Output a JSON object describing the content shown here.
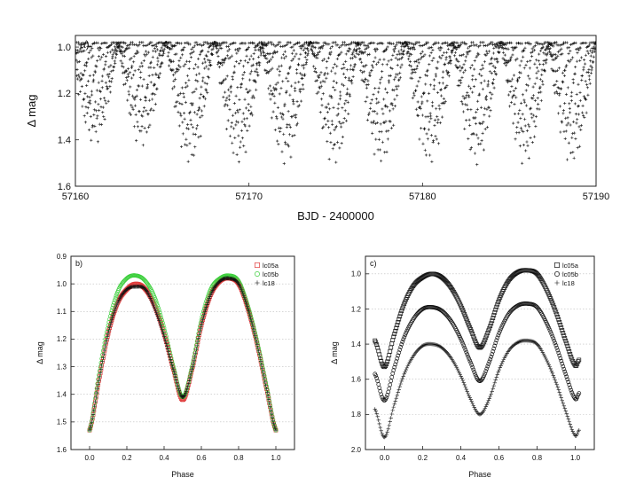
{
  "colors": {
    "axis": "#222222",
    "grid": "#bdbdbd",
    "marker_black": "#111111",
    "marker_red": "#e03c3c",
    "marker_green": "#3ccf3c"
  },
  "chart_data": [
    {
      "id": "a",
      "type": "scatter",
      "panel_label": "a)",
      "xlabel": "BJD - 2400000",
      "ylabel": "Δ mag",
      "xlim": [
        57160,
        57190
      ],
      "ylim": [
        1.6,
        0.95
      ],
      "y_inverted": true,
      "grid": false,
      "xticks": [
        57160,
        57170,
        57180,
        57190
      ],
      "xtick_labels": [
        "57160",
        "57170",
        "57180",
        "57190"
      ],
      "yticks": [
        1.0,
        1.2,
        1.4,
        1.6
      ],
      "ytick_labels": [
        "1.0",
        "1.2",
        "1.4",
        "1.6"
      ],
      "marker": "plus",
      "series": [
        {
          "color": "#111111",
          "sample_period_days": 0.0208,
          "trace_segments": [
            {
              "x": [
                57160.0,
                57166.6
              ],
              "y": [
                0.97,
                1.51
              ]
            },
            {
              "x": [
                57166.6,
                57175.8
              ],
              "y": [
                1.51,
                0.98
              ]
            },
            {
              "x": [
                57175.8,
                57186.8
              ],
              "y": [
                0.98,
                1.51
              ]
            },
            {
              "x": [
                57186.8,
                57190.0
              ],
              "y": [
                1.51,
                1.28
              ]
            }
          ],
          "eclipse_minima": [
            {
              "x": 57161.1,
              "y": 1.42
            },
            {
              "x": 57163.8,
              "y": 1.43
            },
            {
              "x": 57166.6,
              "y": 1.51
            },
            {
              "x": 57169.4,
              "y": 1.51
            },
            {
              "x": 57172.1,
              "y": 1.51
            },
            {
              "x": 57174.9,
              "y": 1.51
            },
            {
              "x": 57177.6,
              "y": 1.51
            },
            {
              "x": 57180.4,
              "y": 1.51
            },
            {
              "x": 57183.1,
              "y": 1.51
            },
            {
              "x": 57185.9,
              "y": 1.51
            },
            {
              "x": 57188.6,
              "y": 1.51
            }
          ]
        }
      ]
    },
    {
      "id": "b",
      "type": "scatter",
      "panel_label": "b)",
      "xlabel": "Phase",
      "ylabel": "Δ mag",
      "xlim": [
        -0.1,
        1.1
      ],
      "ylim": [
        1.6,
        0.9
      ],
      "y_inverted": true,
      "grid": true,
      "legend_position": "top-right",
      "xticks": [
        0.0,
        0.2,
        0.4,
        0.6,
        0.8,
        1.0
      ],
      "xtick_labels": [
        "0.0",
        "0.2",
        "0.4",
        "0.6",
        "0.8",
        "1.0"
      ],
      "yticks": [
        0.9,
        1.0,
        1.1,
        1.2,
        1.3,
        1.4,
        1.5,
        1.6
      ],
      "ytick_labels": [
        "0.9",
        "1.0",
        "1.1",
        "1.2",
        "1.3",
        "1.4",
        "1.5",
        "1.6"
      ],
      "series": [
        {
          "name": "lc05a",
          "marker": "square",
          "color": "#e03c3c",
          "x": [
            0.0,
            0.05,
            0.1,
            0.15,
            0.2,
            0.25,
            0.3,
            0.35,
            0.4,
            0.45,
            0.5,
            0.55,
            0.6,
            0.65,
            0.7,
            0.75,
            0.8,
            0.85,
            0.9,
            0.95,
            1.0
          ],
          "y": [
            1.53,
            1.35,
            1.18,
            1.07,
            1.02,
            1.0,
            1.02,
            1.08,
            1.18,
            1.31,
            1.42,
            1.31,
            1.15,
            1.04,
            0.99,
            0.98,
            1.0,
            1.09,
            1.22,
            1.38,
            1.53
          ]
        },
        {
          "name": "lc05b",
          "marker": "circle",
          "color": "#3ccf3c",
          "x": [
            0.0,
            0.05,
            0.1,
            0.15,
            0.2,
            0.25,
            0.3,
            0.35,
            0.4,
            0.45,
            0.5,
            0.55,
            0.6,
            0.65,
            0.7,
            0.75,
            0.8,
            0.85,
            0.9,
            0.95,
            1.0
          ],
          "y": [
            1.53,
            1.33,
            1.15,
            1.03,
            0.98,
            0.97,
            0.99,
            1.05,
            1.16,
            1.3,
            1.41,
            1.3,
            1.13,
            1.02,
            0.98,
            0.97,
            0.99,
            1.08,
            1.21,
            1.37,
            1.53
          ]
        },
        {
          "name": "lc18",
          "marker": "plus",
          "color": "#111111",
          "x": [
            0.0,
            0.05,
            0.1,
            0.15,
            0.2,
            0.25,
            0.3,
            0.35,
            0.4,
            0.45,
            0.5,
            0.55,
            0.6,
            0.65,
            0.7,
            0.75,
            0.8,
            0.85,
            0.9,
            0.95,
            1.0
          ],
          "y": [
            1.53,
            1.35,
            1.18,
            1.07,
            1.02,
            1.01,
            1.02,
            1.09,
            1.19,
            1.31,
            1.41,
            1.31,
            1.15,
            1.04,
            0.99,
            0.98,
            1.0,
            1.09,
            1.22,
            1.38,
            1.53
          ]
        }
      ]
    },
    {
      "id": "c",
      "type": "scatter",
      "panel_label": "c)",
      "xlabel": "Phase",
      "ylabel": "Δ mag",
      "xlim": [
        -0.1,
        1.1
      ],
      "ylim": [
        2.0,
        0.9
      ],
      "y_inverted": true,
      "grid": true,
      "legend_position": "top-right",
      "xticks": [
        0.0,
        0.2,
        0.4,
        0.6,
        0.8,
        1.0
      ],
      "xtick_labels": [
        "0.0",
        "0.2",
        "0.4",
        "0.6",
        "0.8",
        "1.0"
      ],
      "yticks": [
        1.0,
        1.2,
        1.4,
        1.6,
        1.8,
        2.0
      ],
      "ytick_labels": [
        "1.0",
        "1.2",
        "1.4",
        "1.6",
        "1.8",
        "2.0"
      ],
      "series": [
        {
          "name": "lc05a",
          "marker": "square",
          "color": "#111111",
          "x": [
            -0.05,
            0.0,
            0.05,
            0.1,
            0.15,
            0.2,
            0.25,
            0.3,
            0.35,
            0.4,
            0.45,
            0.5,
            0.55,
            0.6,
            0.65,
            0.7,
            0.75,
            0.8,
            0.85,
            0.9,
            0.95,
            1.0,
            1.02
          ],
          "y": [
            1.38,
            1.53,
            1.35,
            1.18,
            1.07,
            1.02,
            1.0,
            1.02,
            1.08,
            1.18,
            1.31,
            1.42,
            1.31,
            1.15,
            1.04,
            0.99,
            0.98,
            1.0,
            1.09,
            1.22,
            1.38,
            1.52,
            1.49
          ]
        },
        {
          "name": "lc05b",
          "marker": "circle",
          "color": "#111111",
          "x": [
            -0.05,
            0.0,
            0.05,
            0.1,
            0.15,
            0.2,
            0.25,
            0.3,
            0.35,
            0.4,
            0.45,
            0.5,
            0.55,
            0.6,
            0.65,
            0.7,
            0.75,
            0.8,
            0.85,
            0.9,
            0.95,
            1.0,
            1.02
          ],
          "y": [
            1.57,
            1.72,
            1.54,
            1.37,
            1.26,
            1.2,
            1.19,
            1.21,
            1.27,
            1.37,
            1.5,
            1.61,
            1.5,
            1.34,
            1.23,
            1.18,
            1.17,
            1.19,
            1.28,
            1.41,
            1.57,
            1.71,
            1.68
          ]
        },
        {
          "name": "lc18",
          "marker": "plus",
          "color": "#111111",
          "x": [
            -0.05,
            0.0,
            0.05,
            0.1,
            0.15,
            0.2,
            0.25,
            0.3,
            0.35,
            0.4,
            0.45,
            0.5,
            0.55,
            0.6,
            0.65,
            0.7,
            0.75,
            0.8,
            0.85,
            0.9,
            0.95,
            1.0,
            1.02
          ],
          "y": [
            1.77,
            1.93,
            1.75,
            1.58,
            1.47,
            1.41,
            1.4,
            1.42,
            1.48,
            1.58,
            1.71,
            1.8,
            1.71,
            1.55,
            1.44,
            1.39,
            1.38,
            1.4,
            1.49,
            1.62,
            1.78,
            1.92,
            1.89
          ]
        }
      ]
    }
  ]
}
